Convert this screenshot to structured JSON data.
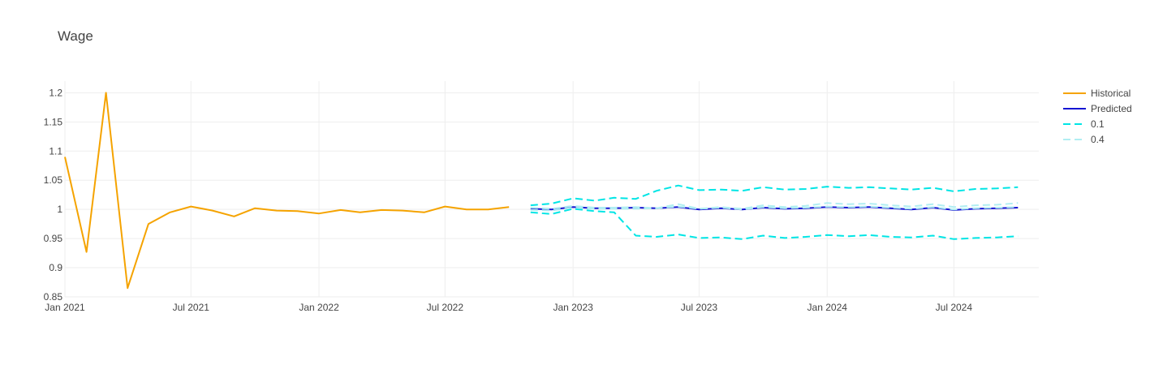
{
  "chart_data": {
    "type": "line",
    "title": "Wage",
    "xlabel": "",
    "ylabel": "",
    "grid": true,
    "legend_position": "right",
    "xlim": [
      "2021-01-01",
      "2024-10-31"
    ],
    "ylim": [
      0.85,
      1.22
    ],
    "y_ticks": [
      0.85,
      0.9,
      0.95,
      1.0,
      1.05,
      1.1,
      1.15,
      1.2
    ],
    "y_tick_labels": [
      "0.85",
      "0.9",
      "0.95",
      "1",
      "1.05",
      "1.1",
      "1.15",
      "1.2"
    ],
    "x_ticks": [
      "2021-01-01",
      "2021-07-01",
      "2022-01-01",
      "2022-07-01",
      "2023-01-01",
      "2023-07-01",
      "2024-01-01",
      "2024-07-01"
    ],
    "x_tick_labels": [
      "Jan 2021",
      "Jul 2021",
      "Jan 2022",
      "Jul 2022",
      "Jan 2023",
      "Jul 2023",
      "Jan 2024",
      "Jul 2024"
    ],
    "series": [
      {
        "name": "Historical",
        "color": "#f5a300",
        "dash": "solid",
        "width": 2,
        "x": [
          "2021-01-01",
          "2021-02-01",
          "2021-03-01",
          "2021-04-01",
          "2021-05-01",
          "2021-06-01",
          "2021-07-01",
          "2021-08-01",
          "2021-09-01",
          "2021-10-01",
          "2021-11-01",
          "2021-12-01",
          "2022-01-01",
          "2022-02-01",
          "2022-03-01",
          "2022-04-01",
          "2022-05-01",
          "2022-06-01",
          "2022-07-01",
          "2022-08-01",
          "2022-09-01",
          "2022-10-01"
        ],
        "values": [
          1.09,
          0.927,
          1.2,
          0.865,
          0.975,
          0.995,
          1.005,
          0.998,
          0.988,
          1.002,
          0.998,
          0.997,
          0.993,
          0.999,
          0.995,
          0.999,
          0.998,
          0.995,
          1.005,
          1.0,
          1.0,
          1.004
        ]
      },
      {
        "name": "Predicted",
        "color": "#1414d2",
        "dash": "solid",
        "width": 2,
        "x": [
          "2022-11-01",
          "2022-12-01",
          "2023-01-01",
          "2023-02-01",
          "2023-03-01",
          "2023-04-01",
          "2023-05-01",
          "2023-06-01",
          "2023-07-01",
          "2023-08-01",
          "2023-09-01",
          "2023-10-01",
          "2023-11-01",
          "2023-12-01",
          "2024-01-01",
          "2024-02-01",
          "2024-03-01",
          "2024-04-01",
          "2024-05-01",
          "2024-06-01",
          "2024-07-01",
          "2024-08-01",
          "2024-09-01",
          "2024-10-01"
        ],
        "values": [
          1.001,
          1.0,
          1.004,
          1.002,
          1.002,
          1.003,
          1.002,
          1.004,
          1.0,
          1.002,
          1.0,
          1.003,
          1.001,
          1.002,
          1.004,
          1.003,
          1.004,
          1.002,
          1.0,
          1.003,
          0.999,
          1.001,
          1.002,
          1.003
        ]
      },
      {
        "name": "0.1",
        "color": "#00e5e5",
        "dash": "dash",
        "width": 2,
        "x": [
          "2022-11-01",
          "2022-12-01",
          "2023-01-01",
          "2023-02-01",
          "2023-03-01",
          "2023-04-01",
          "2023-05-01",
          "2023-06-01",
          "2023-07-01",
          "2023-08-01",
          "2023-09-01",
          "2023-10-01",
          "2023-11-01",
          "2023-12-01",
          "2024-01-01",
          "2024-02-01",
          "2024-03-01",
          "2024-04-01",
          "2024-05-01",
          "2024-06-01",
          "2024-07-01",
          "2024-08-01",
          "2024-09-01",
          "2024-10-01"
        ],
        "values": [
          0.995,
          0.992,
          1.001,
          0.997,
          0.995,
          0.955,
          0.953,
          0.957,
          0.951,
          0.952,
          0.949,
          0.955,
          0.951,
          0.953,
          0.956,
          0.954,
          0.956,
          0.953,
          0.952,
          0.955,
          0.949,
          0.951,
          0.952,
          0.954
        ]
      },
      {
        "name": "0.1",
        "color": "#00e5e5",
        "dash": "dash",
        "width": 2,
        "show_legend": false,
        "x": [
          "2022-11-01",
          "2022-12-01",
          "2023-01-01",
          "2023-02-01",
          "2023-03-01",
          "2023-04-01",
          "2023-05-01",
          "2023-06-01",
          "2023-07-01",
          "2023-08-01",
          "2023-09-01",
          "2023-10-01",
          "2023-11-01",
          "2023-12-01",
          "2024-01-01",
          "2024-02-01",
          "2024-03-01",
          "2024-04-01",
          "2024-05-01",
          "2024-06-01",
          "2024-07-01",
          "2024-08-01",
          "2024-09-01",
          "2024-10-01"
        ],
        "values": [
          1.007,
          1.01,
          1.019,
          1.015,
          1.02,
          1.018,
          1.032,
          1.041,
          1.033,
          1.034,
          1.032,
          1.038,
          1.034,
          1.035,
          1.039,
          1.037,
          1.038,
          1.036,
          1.034,
          1.037,
          1.031,
          1.035,
          1.036,
          1.038
        ]
      },
      {
        "name": "0.4",
        "color": "#b0eef2",
        "dash": "dash",
        "width": 2,
        "x": [
          "2022-11-01",
          "2022-12-01",
          "2023-01-01",
          "2023-02-01",
          "2023-03-01",
          "2023-04-01",
          "2023-05-01",
          "2023-06-01",
          "2023-07-01",
          "2023-08-01",
          "2023-09-01",
          "2023-10-01",
          "2023-11-01",
          "2023-12-01",
          "2024-01-01",
          "2024-02-01",
          "2024-03-01",
          "2024-04-01",
          "2024-05-01",
          "2024-06-01",
          "2024-07-01",
          "2024-08-01",
          "2024-09-01",
          "2024-10-01"
        ],
        "values": [
          0.999,
          0.998,
          1.003,
          1.001,
          1.001,
          1.001,
          1.002,
          1.009,
          1.001,
          1.004,
          1.001,
          1.007,
          1.004,
          1.006,
          1.011,
          1.009,
          1.01,
          1.007,
          1.005,
          1.009,
          1.004,
          1.007,
          1.008,
          1.011
        ]
      },
      {
        "name": "0.4",
        "color": "#b0eef2",
        "dash": "dash",
        "width": 2,
        "show_legend": false,
        "x": [
          "2022-11-01",
          "2022-12-01",
          "2023-01-01",
          "2023-02-01",
          "2023-03-01",
          "2023-04-01",
          "2023-05-01",
          "2023-06-01",
          "2023-07-01",
          "2023-08-01",
          "2023-09-01",
          "2023-10-01",
          "2023-11-01",
          "2023-12-01",
          "2024-01-01",
          "2024-02-01",
          "2024-03-01",
          "2024-04-01",
          "2024-05-01",
          "2024-06-01",
          "2024-07-01",
          "2024-08-01",
          "2024-09-01",
          "2024-10-01"
        ],
        "values": [
          1.003,
          1.001,
          1.006,
          1.003,
          1.003,
          1.004,
          1.002,
          1.005,
          1.001,
          1.003,
          1.0,
          1.004,
          1.002,
          1.003,
          1.005,
          1.004,
          1.005,
          1.003,
          1.001,
          1.004,
          1.0,
          1.002,
          1.003,
          1.004
        ]
      }
    ]
  }
}
